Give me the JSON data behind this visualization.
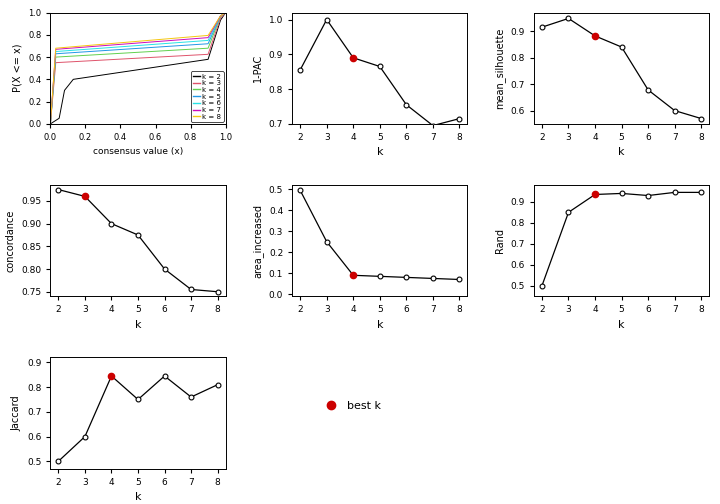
{
  "k_vals": [
    2,
    3,
    4,
    5,
    6,
    7,
    8
  ],
  "best_k": 4,
  "pac": [
    0.855,
    1.0,
    0.89,
    0.865,
    0.755,
    0.695,
    0.715
  ],
  "mean_silhouette": [
    0.915,
    0.948,
    0.882,
    0.84,
    0.678,
    0.6,
    0.57
  ],
  "concordance": [
    0.975,
    0.96,
    0.9,
    0.875,
    0.8,
    0.755,
    0.75
  ],
  "area_increased": [
    0.495,
    0.25,
    0.09,
    0.085,
    0.08,
    0.075,
    0.07
  ],
  "rand": [
    0.5,
    0.85,
    0.935,
    0.94,
    0.93,
    0.945,
    0.945
  ],
  "jaccard": [
    0.5,
    0.6,
    0.845,
    0.75,
    0.845,
    0.76,
    0.81
  ],
  "cdf_colors": [
    "#000000",
    "#F8766D",
    "#7CAE00",
    "#00BFC4",
    "#00BFC4",
    "#C77CFF",
    "#F8766D"
  ],
  "cdf_colors_actual": [
    "#000000",
    "#E58606",
    "#5D69B1",
    "#52BCA3",
    "#99C945",
    "#CC61B0",
    "#24796C"
  ],
  "cdf_k_labels": [
    "k = 2",
    "k = 3",
    "k = 4",
    "k = 5",
    "k = 6",
    "k = 7",
    "k = 8"
  ],
  "background": "#FFFFFF",
  "point_color": "#000000",
  "best_k_color": "#CC0000",
  "line_color": "#000000",
  "concordance_best_k": 3,
  "rand_best_k": 4
}
